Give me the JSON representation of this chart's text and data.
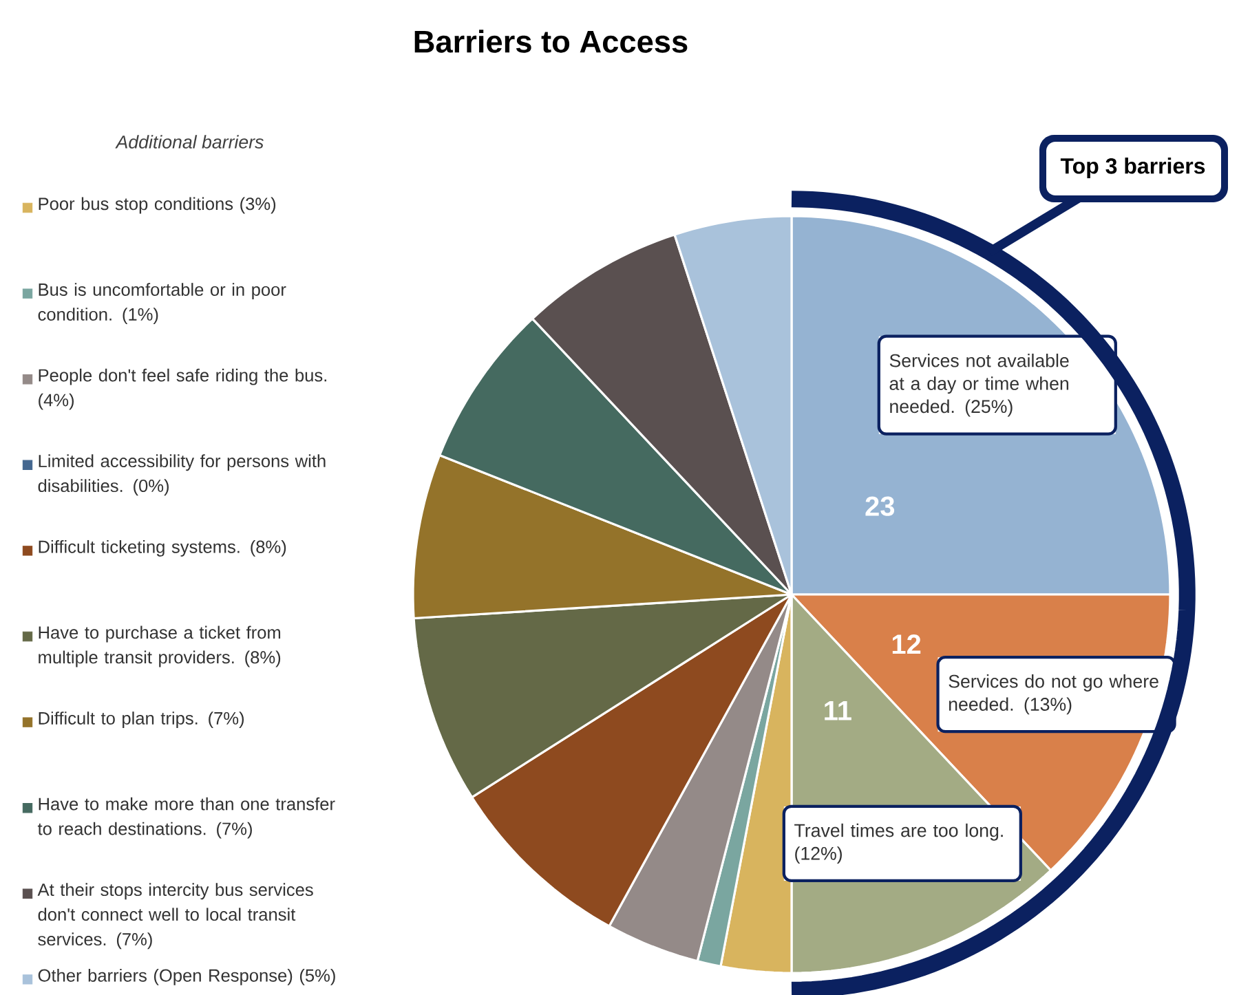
{
  "chart_data": {
    "type": "pie",
    "title": "Barriers to Access",
    "legend_title": "Additional barriers",
    "categories": [
      "Services not available at a day or time when needed. (25%)",
      "Services do not go where needed. (13%)",
      "Travel times are too long. (12%)",
      "Poor bus stop conditions (3%)",
      "Bus is uncomfortable or in poor condition. (1%)",
      "People don't feel safe riding the bus. (4%)",
      "Limited accessibility for persons with disabilities. (0%)",
      "Difficult ticketing systems. (8%)",
      "Have to purchase a ticket from multiple transit providers. (8%)",
      "Difficult to plan trips. (7%)",
      "Have to make more than one transfer to reach destinations. (7%)",
      "At their stops intercity bus services don't connect well to local transit services. (7%)",
      "Other barriers (Open Response) (5%)"
    ],
    "values": [
      25,
      13,
      12,
      3,
      1,
      4,
      0,
      8,
      8,
      7,
      7,
      7,
      5
    ],
    "colors": [
      "#95b3d2",
      "#d9804a",
      "#a3ab84",
      "#d8b45e",
      "#7aa6a0",
      "#948a88",
      "#44678f",
      "#8e4a1f",
      "#646947",
      "#94732a",
      "#456a60",
      "#5a5050",
      "#a9c2db"
    ],
    "annotations": [
      "Top 3 barriers",
      "23",
      "12",
      "11"
    ],
    "legend": "left",
    "marker": "square"
  }
}
